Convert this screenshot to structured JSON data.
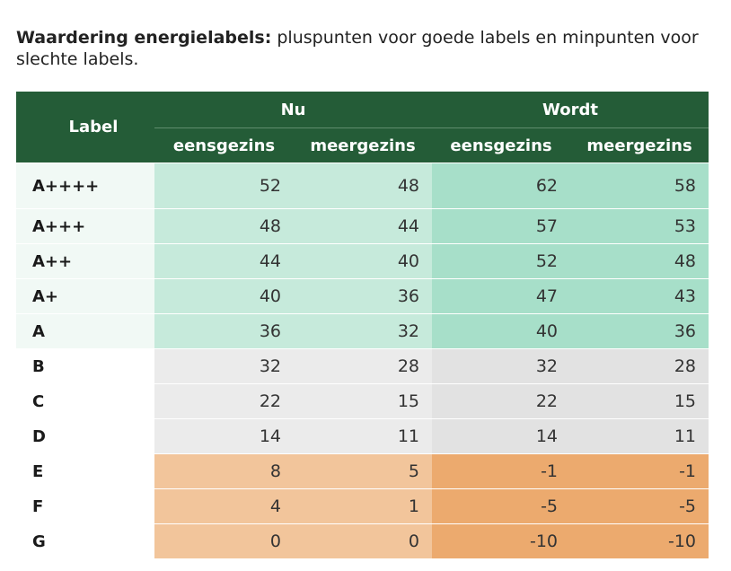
{
  "caption": {
    "bold": "Waardering energielabels:",
    "rest": " pluspunten voor goede labels en minpunten voor slechte labels."
  },
  "table": {
    "label_header": "Label",
    "group_now": "Nu",
    "group_future": "Wordt",
    "sub_single": "eensgezins",
    "sub_multi": "meergezins",
    "rows": [
      {
        "label": "A++++",
        "band": "green",
        "now_single": "52",
        "now_multi": "48",
        "future_single": "62",
        "future_multi": "58"
      },
      {
        "label": "A+++",
        "band": "green",
        "now_single": "48",
        "now_multi": "44",
        "future_single": "57",
        "future_multi": "53"
      },
      {
        "label": "A++",
        "band": "green",
        "now_single": "44",
        "now_multi": "40",
        "future_single": "52",
        "future_multi": "48"
      },
      {
        "label": "A+",
        "band": "green",
        "now_single": "40",
        "now_multi": "36",
        "future_single": "47",
        "future_multi": "43"
      },
      {
        "label": "A",
        "band": "green",
        "now_single": "36",
        "now_multi": "32",
        "future_single": "40",
        "future_multi": "36"
      },
      {
        "label": "B",
        "band": "grey",
        "now_single": "32",
        "now_multi": "28",
        "future_single": "32",
        "future_multi": "28"
      },
      {
        "label": "C",
        "band": "grey",
        "now_single": "22",
        "now_multi": "15",
        "future_single": "22",
        "future_multi": "15"
      },
      {
        "label": "D",
        "band": "grey",
        "now_single": "14",
        "now_multi": "11",
        "future_single": "14",
        "future_multi": "11"
      },
      {
        "label": "E",
        "band": "orange",
        "now_single": "8",
        "now_multi": "5",
        "future_single": "-1",
        "future_multi": "-1"
      },
      {
        "label": "F",
        "band": "orange",
        "now_single": "4",
        "now_multi": "1",
        "future_single": "-5",
        "future_multi": "-5"
      },
      {
        "label": "G",
        "band": "orange",
        "now_single": "0",
        "now_multi": "0",
        "future_single": "-10",
        "future_multi": "-10"
      }
    ]
  },
  "colors": {
    "header_green": "#245c37",
    "green_now": "#c6eadb",
    "green_future": "#a7dfc9",
    "grey_now": "#ebebeb",
    "grey_future": "#e2e2e2",
    "orange_now": "#f2c59b",
    "orange_future": "#ecaa6e"
  }
}
